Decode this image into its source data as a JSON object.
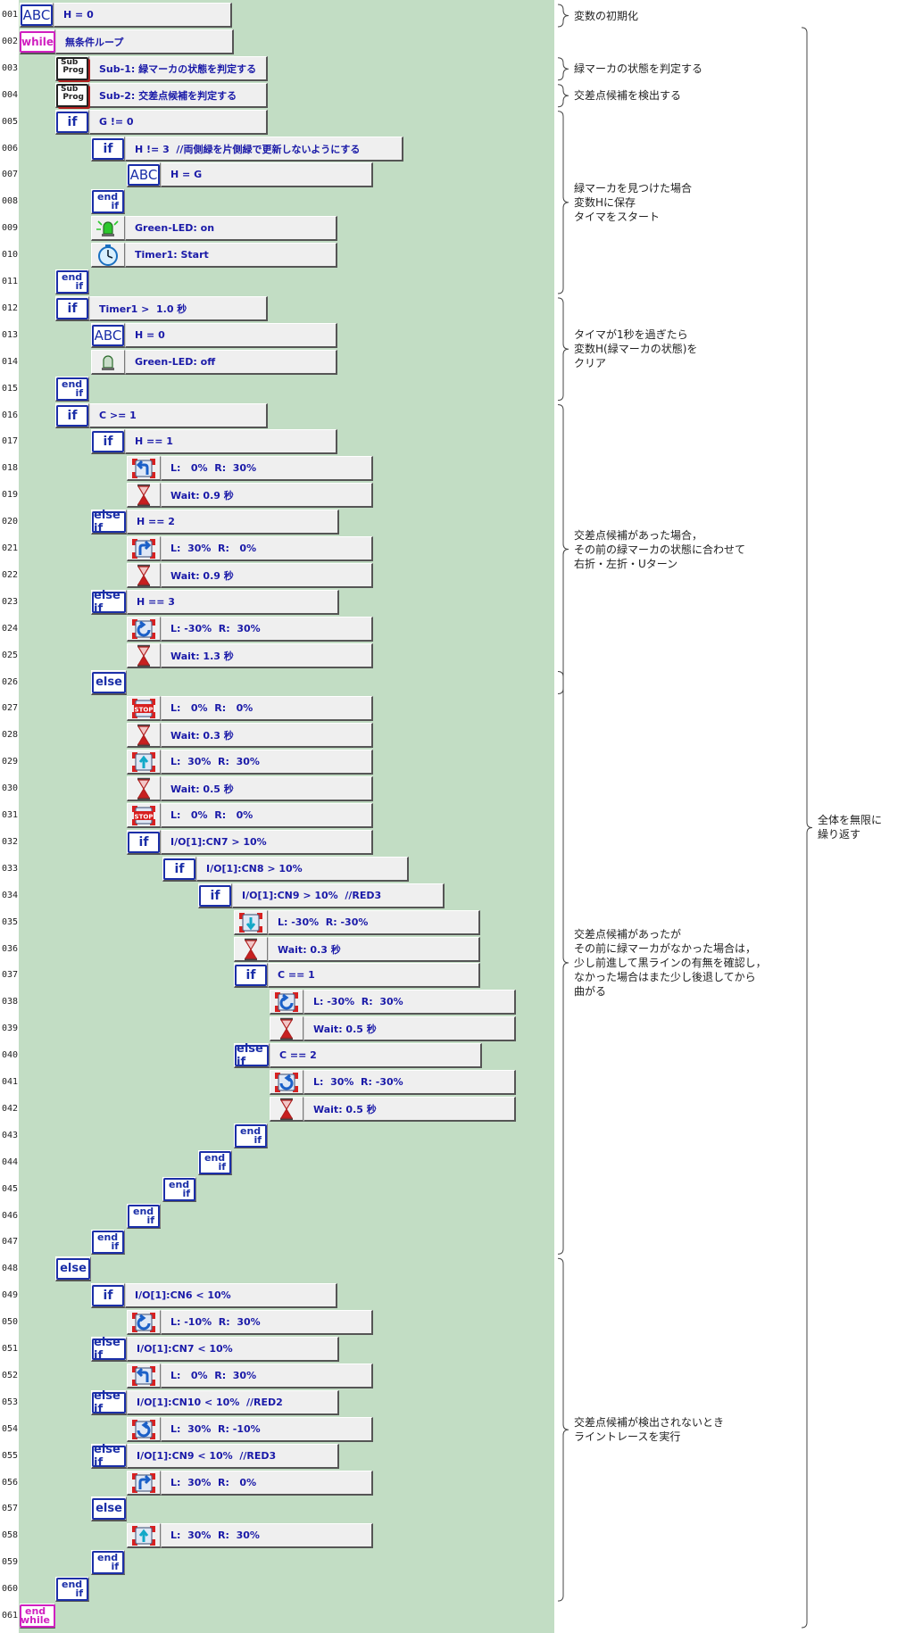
{
  "lines": [
    {
      "n": "001",
      "indent": 0,
      "icon": "abc",
      "text": "H = 0",
      "w": 200
    },
    {
      "n": "002",
      "indent": 0,
      "icon": "while",
      "text": "無条件ループ",
      "w": 200
    },
    {
      "n": "003",
      "indent": 1,
      "icon": "sub",
      "text": "Sub-1: 緑マーカの状態を判定する",
      "w": 200
    },
    {
      "n": "004",
      "indent": 1,
      "icon": "sub",
      "text": "Sub-2: 交差点候補を判定する",
      "w": 200
    },
    {
      "n": "005",
      "indent": 1,
      "icon": "if",
      "text": "G != 0",
      "w": 200
    },
    {
      "n": "006",
      "indent": 2,
      "icon": "if",
      "text": "H != 3  //両側緑を片側緑で更新しないようにする",
      "w": 312
    },
    {
      "n": "007",
      "indent": 3,
      "icon": "abc",
      "text": "H = G",
      "w": 238
    },
    {
      "n": "008",
      "indent": 2,
      "icon": "endif",
      "text": "",
      "w": 0
    },
    {
      "n": "009",
      "indent": 2,
      "icon": "led-on",
      "text": "Green-LED: on",
      "w": 238
    },
    {
      "n": "010",
      "indent": 2,
      "icon": "timer",
      "text": "Timer1: Start",
      "w": 238
    },
    {
      "n": "011",
      "indent": 1,
      "icon": "endif",
      "text": "",
      "w": 0
    },
    {
      "n": "012",
      "indent": 1,
      "icon": "if",
      "text": "Timer1 >  1.0 秒",
      "w": 200
    },
    {
      "n": "013",
      "indent": 2,
      "icon": "abc",
      "text": "H = 0",
      "w": 238
    },
    {
      "n": "014",
      "indent": 2,
      "icon": "led-off",
      "text": "Green-LED: off",
      "w": 238
    },
    {
      "n": "015",
      "indent": 1,
      "icon": "endif",
      "text": "",
      "w": 0
    },
    {
      "n": "016",
      "indent": 1,
      "icon": "if",
      "text": "C >= 1",
      "w": 200
    },
    {
      "n": "017",
      "indent": 2,
      "icon": "if",
      "text": "H == 1",
      "w": 238
    },
    {
      "n": "018",
      "indent": 3,
      "icon": "left",
      "text": "L:   0%  R:  30%",
      "w": 238
    },
    {
      "n": "019",
      "indent": 3,
      "icon": "wait",
      "text": "Wait: 0.9 秒",
      "w": 238
    },
    {
      "n": "020",
      "indent": 2,
      "icon": "elseif",
      "text": "H == 2",
      "w": 238
    },
    {
      "n": "021",
      "indent": 3,
      "icon": "right",
      "text": "L:  30%  R:   0%",
      "w": 238
    },
    {
      "n": "022",
      "indent": 3,
      "icon": "wait",
      "text": "Wait: 0.9 秒",
      "w": 238
    },
    {
      "n": "023",
      "indent": 2,
      "icon": "elseif",
      "text": "H == 3",
      "w": 238
    },
    {
      "n": "024",
      "indent": 3,
      "icon": "spinl",
      "text": "L: -30%  R:  30%",
      "w": 238
    },
    {
      "n": "025",
      "indent": 3,
      "icon": "wait",
      "text": "Wait: 1.3 秒",
      "w": 238
    },
    {
      "n": "026",
      "indent": 2,
      "icon": "else",
      "text": "",
      "w": 0
    },
    {
      "n": "027",
      "indent": 3,
      "icon": "stop",
      "text": "L:   0%  R:   0%",
      "w": 238
    },
    {
      "n": "028",
      "indent": 3,
      "icon": "wait",
      "text": "Wait: 0.3 秒",
      "w": 238
    },
    {
      "n": "029",
      "indent": 3,
      "icon": "fwd",
      "text": "L:  30%  R:  30%",
      "w": 238
    },
    {
      "n": "030",
      "indent": 3,
      "icon": "wait",
      "text": "Wait: 0.5 秒",
      "w": 238
    },
    {
      "n": "031",
      "indent": 3,
      "icon": "stop",
      "text": "L:   0%  R:   0%",
      "w": 238
    },
    {
      "n": "032",
      "indent": 3,
      "icon": "if",
      "text": "I/O[1]:CN7 > 10%",
      "w": 238
    },
    {
      "n": "033",
      "indent": 4,
      "icon": "if",
      "text": "I/O[1]:CN8 > 10%",
      "w": 238
    },
    {
      "n": "034",
      "indent": 5,
      "icon": "if",
      "text": "I/O[1]:CN9 > 10%  //RED3",
      "w": 238
    },
    {
      "n": "035",
      "indent": 6,
      "icon": "back",
      "text": "L: -30%  R: -30%",
      "w": 238
    },
    {
      "n": "036",
      "indent": 6,
      "icon": "wait",
      "text": "Wait: 0.3 秒",
      "w": 238
    },
    {
      "n": "037",
      "indent": 6,
      "icon": "if",
      "text": "C == 1",
      "w": 238
    },
    {
      "n": "038",
      "indent": 7,
      "icon": "spinl",
      "text": "L: -30%  R:  30%",
      "w": 238
    },
    {
      "n": "039",
      "indent": 7,
      "icon": "wait",
      "text": "Wait: 0.5 秒",
      "w": 238
    },
    {
      "n": "040",
      "indent": 6,
      "icon": "elseif",
      "text": "C == 2",
      "w": 238
    },
    {
      "n": "041",
      "indent": 7,
      "icon": "spinr",
      "text": "L:  30%  R: -30%",
      "w": 238
    },
    {
      "n": "042",
      "indent": 7,
      "icon": "wait",
      "text": "Wait: 0.5 秒",
      "w": 238
    },
    {
      "n": "043",
      "indent": 6,
      "icon": "endif",
      "text": "",
      "w": 0
    },
    {
      "n": "044",
      "indent": 5,
      "icon": "endif",
      "text": "",
      "w": 0
    },
    {
      "n": "045",
      "indent": 4,
      "icon": "endif",
      "text": "",
      "w": 0
    },
    {
      "n": "046",
      "indent": 3,
      "icon": "endif",
      "text": "",
      "w": 0
    },
    {
      "n": "047",
      "indent": 2,
      "icon": "endif",
      "text": "",
      "w": 0
    },
    {
      "n": "048",
      "indent": 1,
      "icon": "else",
      "text": "",
      "w": 0
    },
    {
      "n": "049",
      "indent": 2,
      "icon": "if",
      "text": "I/O[1]:CN6 < 10%",
      "w": 238
    },
    {
      "n": "050",
      "indent": 3,
      "icon": "spinl",
      "text": "L: -10%  R:  30%",
      "w": 238
    },
    {
      "n": "051",
      "indent": 2,
      "icon": "elseif",
      "text": "I/O[1]:CN7 < 10%",
      "w": 238
    },
    {
      "n": "052",
      "indent": 3,
      "icon": "left",
      "text": "L:   0%  R:  30%",
      "w": 238
    },
    {
      "n": "053",
      "indent": 2,
      "icon": "elseif",
      "text": "I/O[1]:CN10 < 10%  //RED2",
      "w": 238
    },
    {
      "n": "054",
      "indent": 3,
      "icon": "spinr",
      "text": "L:  30%  R: -10%",
      "w": 238
    },
    {
      "n": "055",
      "indent": 2,
      "icon": "elseif",
      "text": "I/O[1]:CN9 < 10%  //RED3",
      "w": 238
    },
    {
      "n": "056",
      "indent": 3,
      "icon": "right",
      "text": "L:  30%  R:   0%",
      "w": 238
    },
    {
      "n": "057",
      "indent": 2,
      "icon": "else",
      "text": "",
      "w": 0
    },
    {
      "n": "058",
      "indent": 3,
      "icon": "fwd",
      "text": "L:  30%  R:  30%",
      "w": 238
    },
    {
      "n": "059",
      "indent": 2,
      "icon": "endif",
      "text": "",
      "w": 0
    },
    {
      "n": "060",
      "indent": 1,
      "icon": "endif",
      "text": "",
      "w": 0
    },
    {
      "n": "061",
      "indent": 0,
      "icon": "endwhile",
      "text": "",
      "w": 0
    }
  ],
  "keywords": {
    "abc": "ABC",
    "while": "while",
    "if": "if",
    "elseif": "else if",
    "else": "else",
    "end": "end",
    "if2": "if",
    "while2": "while",
    "sub1": "Sub",
    "sub2": "Prog",
    "stop": "STOP"
  },
  "annotations": [
    {
      "text": "変数の初期化",
      "from": 1,
      "to": 1
    },
    {
      "text": "緑マーカの状態を判定する",
      "from": 3,
      "to": 3
    },
    {
      "text": "交差点候補を検出する",
      "from": 4,
      "to": 4
    },
    {
      "text": "緑マーカを見つけた場合\n変数Hに保存\nタイマをスタート",
      "from": 5,
      "to": 11
    },
    {
      "text": "タイマが1秒を過ぎたら\n変数H(緑マーカの状態)を\nクリア",
      "from": 12,
      "to": 15
    },
    {
      "text": "交差点候補があった場合，\nその前の緑マーカの状態に合わせて\n右折・左折・Uターン",
      "from": 16,
      "to": 26
    },
    {
      "text": "交差点候補があったが\nその前に緑マーカがなかった場合は，\n少し前進して黒ラインの有無を確認し，\nなかった場合はまた少し後退してから\n曲がる",
      "from": 26,
      "to": 47
    },
    {
      "text": "交差点候補が検出されないとき\nライントレースを実行",
      "from": 48,
      "to": 60
    }
  ],
  "outer_annotation": {
    "text": "全体を無限に\n繰り返す",
    "from": 2,
    "to": 61
  },
  "colors": {
    "blue": "#1b2fa8",
    "pink": "#d020c0",
    "green": "#c2ddc4",
    "robot_red": "#d82020"
  }
}
